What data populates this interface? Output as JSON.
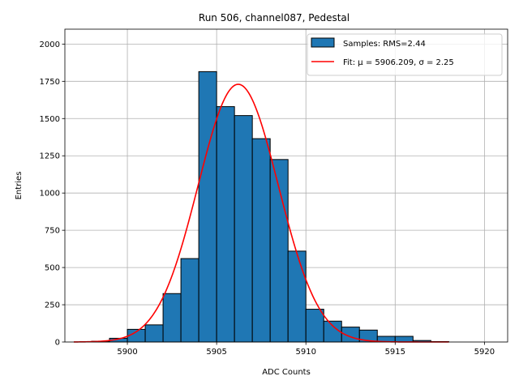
{
  "chart_data": {
    "type": "bar",
    "title": "Run 506, channel087, Pedestal",
    "xlabel": "ADC Counts",
    "ylabel": "Entries",
    "xlim": [
      5896.5,
      5921.3
    ],
    "ylim": [
      0,
      2100
    ],
    "grid": true,
    "legend_position": "top-right",
    "xticks": [
      5900,
      5905,
      5910,
      5915,
      5920
    ],
    "yticks": [
      0,
      250,
      500,
      750,
      1000,
      1250,
      1500,
      1750,
      2000
    ],
    "histogram": {
      "name": "Samples: RMS=2.44",
      "color": "#1f77b4",
      "edgecolor": "#000000",
      "bins": [
        {
          "x0": 5898.0,
          "x1": 5899.0,
          "count": 5
        },
        {
          "x0": 5899.0,
          "x1": 5900.0,
          "count": 25
        },
        {
          "x0": 5900.0,
          "x1": 5901.0,
          "count": 85
        },
        {
          "x0": 5901.0,
          "x1": 5902.0,
          "count": 115
        },
        {
          "x0": 5902.0,
          "x1": 5903.0,
          "count": 325
        },
        {
          "x0": 5903.0,
          "x1": 5904.0,
          "count": 560
        },
        {
          "x0": 5904.0,
          "x1": 5905.0,
          "count": 1815
        },
        {
          "x0": 5905.0,
          "x1": 5906.0,
          "count": 1580
        },
        {
          "x0": 5906.0,
          "x1": 5907.0,
          "count": 1520
        },
        {
          "x0": 5907.0,
          "x1": 5908.0,
          "count": 1365
        },
        {
          "x0": 5908.0,
          "x1": 5909.0,
          "count": 1225
        },
        {
          "x0": 5909.0,
          "x1": 5910.0,
          "count": 610
        },
        {
          "x0": 5910.0,
          "x1": 5911.0,
          "count": 220
        },
        {
          "x0": 5911.0,
          "x1": 5912.0,
          "count": 140
        },
        {
          "x0": 5912.0,
          "x1": 5913.0,
          "count": 100
        },
        {
          "x0": 5913.0,
          "x1": 5914.0,
          "count": 80
        },
        {
          "x0": 5914.0,
          "x1": 5915.0,
          "count": 38
        },
        {
          "x0": 5915.0,
          "x1": 5916.0,
          "count": 38
        },
        {
          "x0": 5916.0,
          "x1": 5917.0,
          "count": 10
        },
        {
          "x0": 5917.0,
          "x1": 5918.0,
          "count": 3
        }
      ]
    },
    "fit": {
      "name": "Fit: μ = 5906.209, σ = 2.25",
      "color": "#ff0000",
      "mu": 5906.209,
      "sigma": 2.25,
      "amplitude": 1730,
      "x_range": [
        5897.0,
        5918.0
      ]
    }
  }
}
